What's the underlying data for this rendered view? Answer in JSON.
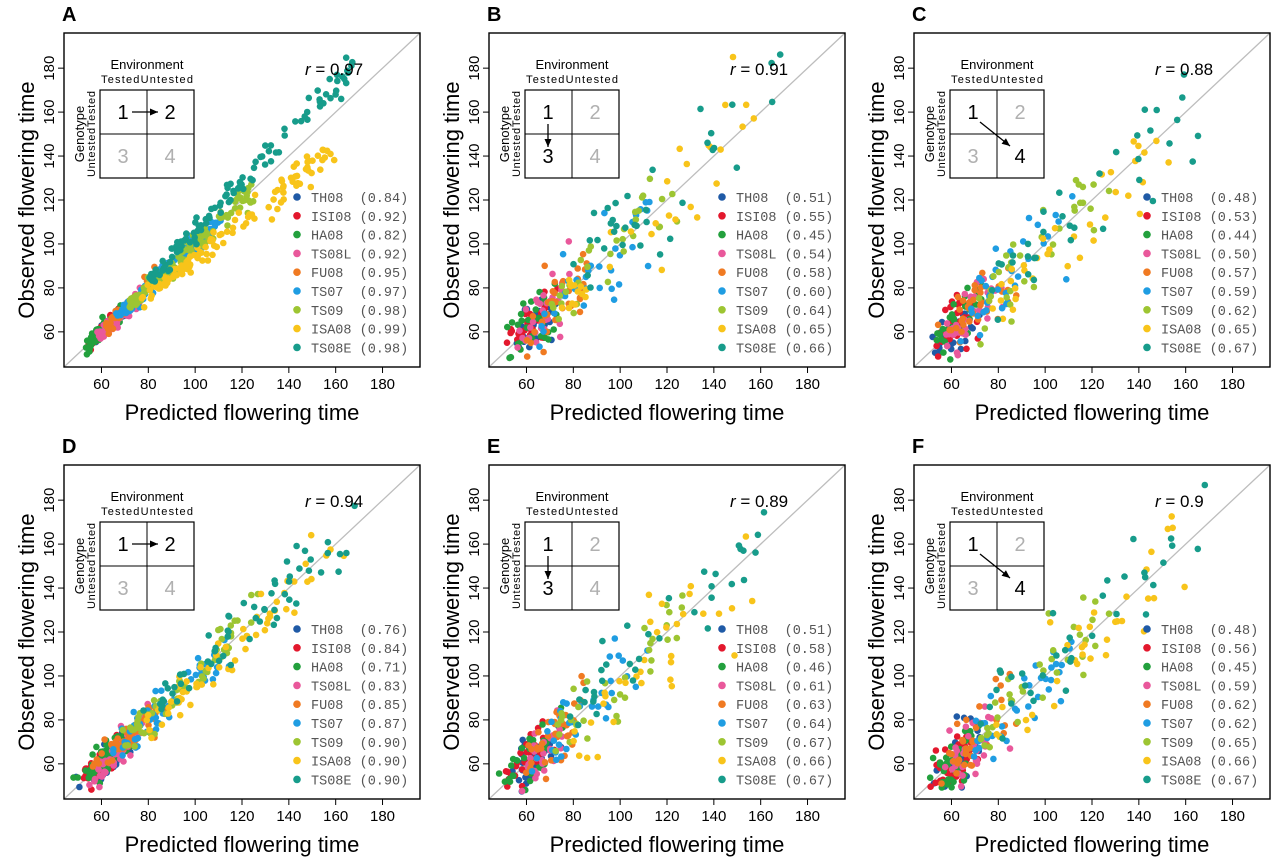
{
  "colors": {
    "TH08": "#1f5aa6",
    "ISI08": "#e3182d",
    "HA08": "#23a03d",
    "TS08L": "#e9589b",
    "FU08": "#f07a22",
    "TS07": "#1f9de2",
    "TS09": "#9dc532",
    "ISA08": "#f8c41a",
    "TS08E": "#179c8b",
    "diagonal": "#bdbdbd",
    "inactive": "#b0b0b0"
  },
  "shared": {
    "xlabel": "Predicted flowering time",
    "ylabel": "Observed flowering time",
    "ticks": [
      60,
      80,
      100,
      120,
      140,
      160,
      180
    ],
    "xlim": [
      44,
      196
    ],
    "ylim": [
      44,
      196
    ],
    "inset": {
      "title": "Environment",
      "cols": "TestedUntested",
      "row_title": "Genotype",
      "rows": "UntestedTested",
      "cells": [
        "1",
        "2",
        "3",
        "4"
      ]
    },
    "series_names": [
      "TH08",
      "ISI08",
      "HA08",
      "TS08L",
      "FU08",
      "TS07",
      "TS09",
      "ISA08",
      "TS08E"
    ]
  },
  "chart_data": [
    {
      "panel": "A",
      "type": "scatter",
      "r_label": "r",
      "r_value": "= 0.97",
      "arrow": "1-2",
      "active_cells": [
        "1",
        "2"
      ],
      "spread": "tight",
      "legend_values": [
        "(0.84)",
        "(0.92)",
        "(0.82)",
        "(0.92)",
        "(0.95)",
        "(0.97)",
        "(0.98)",
        "(0.99)",
        "(0.98)"
      ]
    },
    {
      "panel": "B",
      "type": "scatter",
      "r_label": "r",
      "r_value": "= 0.91",
      "arrow": "1-3",
      "active_cells": [
        "1",
        "3"
      ],
      "spread": "wide",
      "legend_values": [
        "(0.51)",
        "(0.55)",
        "(0.45)",
        "(0.54)",
        "(0.58)",
        "(0.60)",
        "(0.64)",
        "(0.65)",
        "(0.66)"
      ]
    },
    {
      "panel": "C",
      "type": "scatter",
      "r_label": "r",
      "r_value": "= 0.88",
      "arrow": "1-4",
      "active_cells": [
        "1",
        "4"
      ],
      "spread": "wide",
      "legend_values": [
        "(0.48)",
        "(0.53)",
        "(0.44)",
        "(0.50)",
        "(0.57)",
        "(0.59)",
        "(0.62)",
        "(0.65)",
        "(0.67)"
      ]
    },
    {
      "panel": "D",
      "type": "scatter",
      "r_label": "r",
      "r_value": "= 0.94",
      "arrow": "1-2",
      "active_cells": [
        "1",
        "2"
      ],
      "spread": "medium",
      "legend_values": [
        "(0.76)",
        "(0.84)",
        "(0.71)",
        "(0.83)",
        "(0.85)",
        "(0.87)",
        "(0.90)",
        "(0.90)",
        "(0.90)"
      ]
    },
    {
      "panel": "E",
      "type": "scatter",
      "r_label": "r",
      "r_value": "= 0.89",
      "arrow": "1-3",
      "active_cells": [
        "1",
        "3"
      ],
      "spread": "wide",
      "legend_values": [
        "(0.51)",
        "(0.58)",
        "(0.46)",
        "(0.61)",
        "(0.63)",
        "(0.64)",
        "(0.67)",
        "(0.66)",
        "(0.67)"
      ]
    },
    {
      "panel": "F",
      "type": "scatter",
      "r_label": "r",
      "r_value": "= 0.9",
      "arrow": "1-4",
      "active_cells": [
        "1",
        "4"
      ],
      "spread": "wide",
      "legend_values": [
        "(0.48)",
        "(0.56)",
        "(0.45)",
        "(0.59)",
        "(0.62)",
        "(0.62)",
        "(0.65)",
        "(0.66)",
        "(0.67)"
      ]
    }
  ],
  "series_model": [
    {
      "name": "TH08",
      "x_range": [
        57,
        72
      ],
      "bias": -2
    },
    {
      "name": "ISI08",
      "x_range": [
        55,
        70
      ],
      "bias": 2
    },
    {
      "name": "HA08",
      "x_range": [
        55,
        70
      ],
      "bias": 4
    },
    {
      "name": "TS08L",
      "x_range": [
        60,
        78
      ],
      "bias": -3
    },
    {
      "name": "FU08",
      "x_range": [
        62,
        85
      ],
      "bias": 1
    },
    {
      "name": "TS07",
      "x_range": [
        68,
        110
      ],
      "bias": 0
    },
    {
      "name": "TS09",
      "x_range": [
        72,
        125
      ],
      "bias": 1
    },
    {
      "name": "ISA08",
      "x_range": [
        78,
        158
      ],
      "bias": -10
    },
    {
      "name": "TS08E",
      "x_range": [
        80,
        168
      ],
      "bias": 8
    }
  ]
}
